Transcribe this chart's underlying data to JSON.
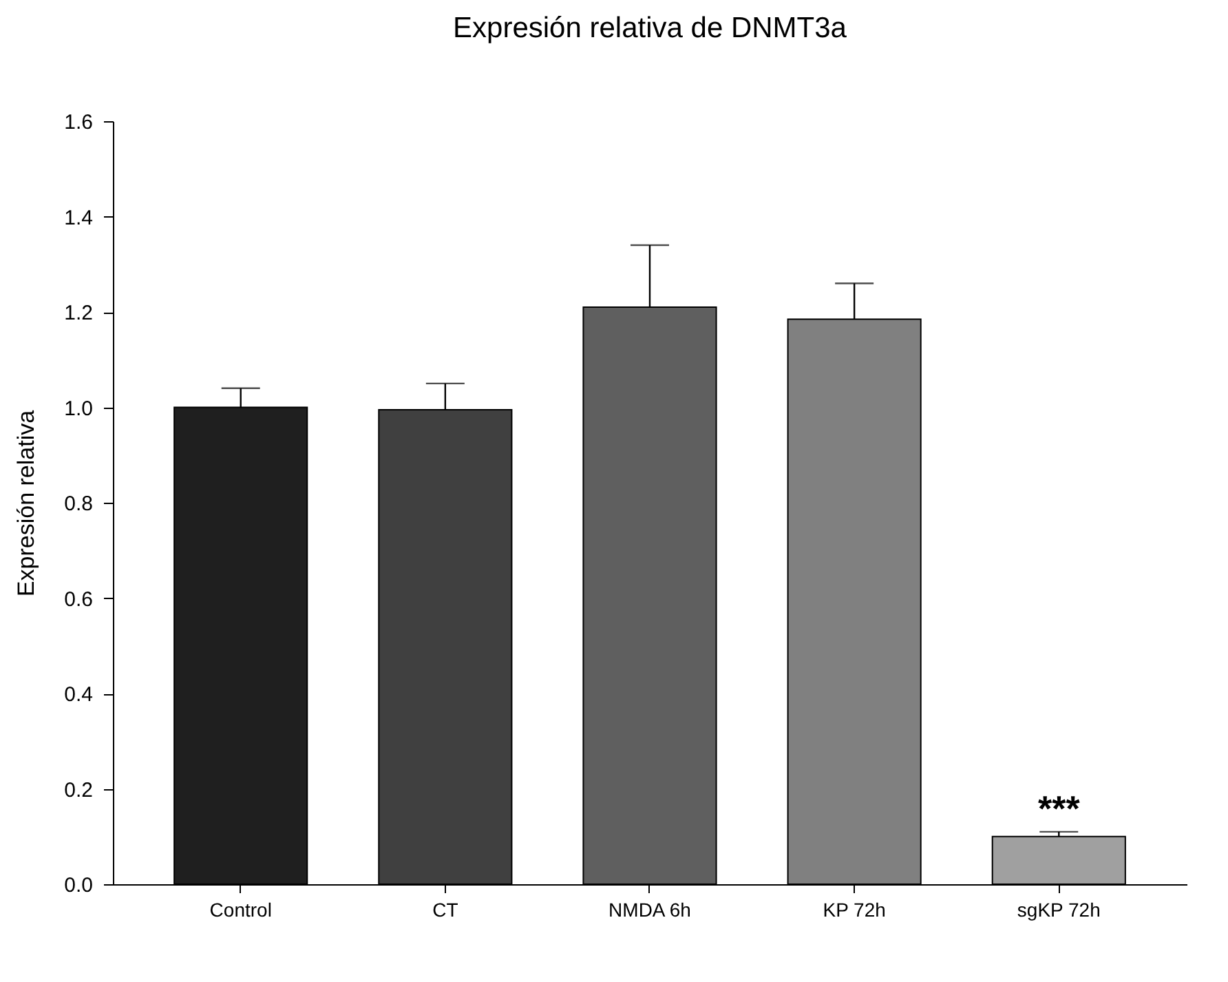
{
  "chart_data": {
    "type": "bar",
    "title": "Expresión relativa de DNMT3a",
    "ylabel": "Expresión relativa",
    "categories": [
      "Control",
      "CT",
      "NMDA 6h",
      "KP 72h",
      "sgKP 72h"
    ],
    "values": [
      1.0,
      0.995,
      1.21,
      1.185,
      0.1
    ],
    "colors": [
      "#1f1f1f",
      "#404040",
      "#5f5f5f",
      "#808080",
      "#a0a0a0"
    ],
    "errors": [
      [
        1.0,
        1.04
      ],
      [
        0.995,
        1.05
      ],
      [
        1.21,
        1.34
      ],
      [
        1.185,
        1.26
      ],
      [
        0.1,
        0.11
      ]
    ],
    "ylim": [
      0,
      1.6
    ],
    "yticks": [
      {
        "value": 0,
        "label": "0.0"
      },
      0.2,
      0.4,
      0.6,
      0.8,
      {
        "value": 1,
        "label": "1.0"
      },
      1.2,
      1.4,
      1.6
    ],
    "annotations": [
      {
        "text": "***",
        "x": "sgKP 72h",
        "y": 0.11
      }
    ],
    "grid": false,
    "legend": false
  }
}
